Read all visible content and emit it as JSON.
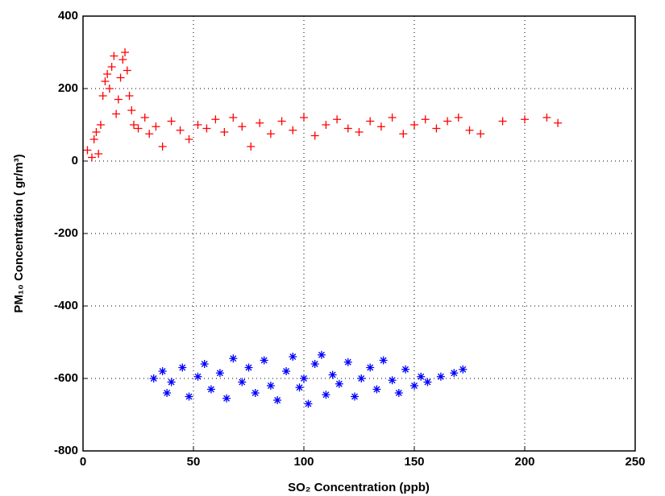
{
  "chart_data": {
    "type": "scatter",
    "xlabel": "SO₂ Concentration (ppb)",
    "ylabel": "PM₁₀ Concentration (   gr/m³)",
    "xlim": [
      0,
      250
    ],
    "xticks": [
      0,
      50,
      100,
      150,
      200,
      250
    ],
    "ylim": [
      -800,
      400
    ],
    "yticks": [
      -800,
      -600,
      -400,
      -200,
      0,
      200,
      400
    ],
    "grid": true,
    "series": [
      {
        "color": "#ff0000",
        "marker": "+",
        "x": [
          2,
          4,
          5,
          6,
          7,
          8,
          9,
          10,
          11,
          12,
          13,
          14,
          15,
          16,
          17,
          18,
          19,
          20,
          21,
          22,
          23,
          25,
          28,
          30,
          33,
          36,
          40,
          44,
          48,
          52,
          56,
          60,
          64,
          68,
          72,
          76,
          80,
          85,
          90,
          95,
          100,
          105,
          110,
          115,
          120,
          125,
          130,
          135,
          140,
          145,
          150,
          155,
          160,
          165,
          170,
          175,
          180,
          190,
          200,
          210,
          215
        ],
        "y": [
          30,
          10,
          60,
          80,
          20,
          100,
          180,
          220,
          240,
          200,
          260,
          290,
          130,
          170,
          230,
          280,
          300,
          250,
          180,
          140,
          100,
          90,
          120,
          75,
          95,
          40,
          110,
          85,
          60,
          100,
          90,
          115,
          80,
          120,
          95,
          40,
          105,
          75,
          110,
          85,
          120,
          70,
          100,
          115,
          90,
          80,
          110,
          95,
          120,
          75,
          100,
          115,
          90,
          110,
          120,
          85,
          75,
          110,
          115,
          120,
          105
        ]
      },
      {
        "color": "#0000ff",
        "marker": "*",
        "x": [
          32,
          36,
          38,
          40,
          45,
          48,
          52,
          55,
          58,
          62,
          65,
          68,
          72,
          75,
          78,
          82,
          85,
          88,
          92,
          95,
          98,
          100,
          102,
          105,
          108,
          110,
          113,
          116,
          120,
          123,
          126,
          130,
          133,
          136,
          140,
          143,
          146,
          150,
          153,
          156,
          162,
          168,
          172
        ],
        "y": [
          -600,
          -580,
          -640,
          -610,
          -570,
          -650,
          -595,
          -560,
          -630,
          -585,
          -655,
          -545,
          -610,
          -570,
          -640,
          -550,
          -620,
          -660,
          -580,
          -540,
          -625,
          -600,
          -670,
          -560,
          -535,
          -645,
          -590,
          -615,
          -555,
          -650,
          -600,
          -570,
          -630,
          -550,
          -605,
          -640,
          -575,
          -620,
          -595,
          -610,
          -595,
          -585,
          -575
        ]
      }
    ]
  }
}
